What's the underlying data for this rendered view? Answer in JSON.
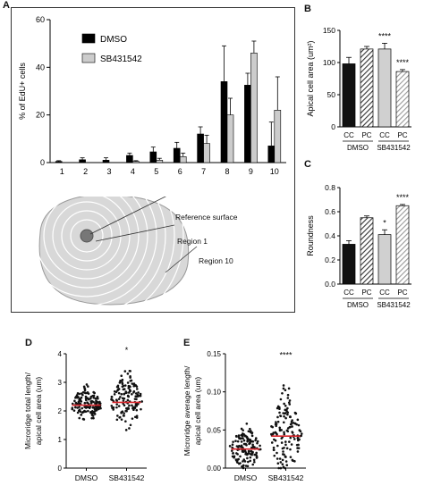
{
  "panels": {
    "A": "A",
    "B": "B",
    "C": "C",
    "D": "D",
    "E": "E"
  },
  "panel_a_annotations": {
    "reference": "Reference surface",
    "region1": "Region 1",
    "region10": "Region 10"
  },
  "chart_data": [
    {
      "id": "A",
      "type": "bar",
      "ylabel": "% of EdU+ cells",
      "xlabel": "",
      "ylim": [
        0,
        60
      ],
      "yticks": [
        0,
        20,
        40,
        60
      ],
      "categories": [
        "1",
        "2",
        "3",
        "4",
        "5",
        "6",
        "7",
        "8",
        "9",
        "10"
      ],
      "legend_position": "top-left",
      "series": [
        {
          "name": "DMSO",
          "color": "#000000",
          "values": [
            0.5,
            1.2,
            1.0,
            3.0,
            4.5,
            6.0,
            12.0,
            34.0,
            32.5,
            7.0
          ],
          "errors": [
            0.3,
            0.8,
            1.0,
            1.0,
            2.0,
            2.5,
            3.0,
            15.0,
            5.0,
            10.0
          ]
        },
        {
          "name": "SB431542",
          "color": "#cccccc",
          "values": [
            0.0,
            0.0,
            0.0,
            0.5,
            1.0,
            2.5,
            8.0,
            20.0,
            46.0,
            22.0
          ],
          "errors": [
            0.0,
            0.0,
            0.0,
            0.3,
            0.8,
            1.5,
            3.5,
            7.0,
            5.0,
            14.0
          ]
        }
      ]
    },
    {
      "id": "B",
      "type": "bar",
      "ylabel": "Apical cell area (um²)",
      "ylim": [
        0,
        150
      ],
      "yticks": [
        0,
        50,
        100,
        150
      ],
      "categories": [
        "CC",
        "PC",
        "CC",
        "PC"
      ],
      "groups": [
        "DMSO",
        "SB431542"
      ],
      "values": [
        98,
        121,
        121,
        86
      ],
      "errors": [
        10,
        4,
        9,
        3
      ],
      "fills": [
        "solid-black",
        "hatch-dark",
        "solid-light",
        "hatch-light"
      ],
      "significance": [
        "",
        "",
        "****",
        "****"
      ]
    },
    {
      "id": "C",
      "type": "bar",
      "ylabel": "Roundness",
      "ylim": [
        0,
        0.8
      ],
      "yticks": [
        0.0,
        0.2,
        0.4,
        0.6,
        0.8
      ],
      "categories": [
        "CC",
        "PC",
        "CC",
        "PC"
      ],
      "groups": [
        "DMSO",
        "SB431542"
      ],
      "values": [
        0.33,
        0.55,
        0.41,
        0.65
      ],
      "errors": [
        0.03,
        0.015,
        0.04,
        0.01
      ],
      "fills": [
        "solid-black",
        "hatch-dark",
        "solid-light",
        "hatch-light"
      ],
      "significance": [
        "",
        "",
        "*",
        "****"
      ]
    },
    {
      "id": "D",
      "type": "scatter",
      "ylabel": "Microridge total length/ apical cell area (um)",
      "ylim": [
        0,
        4
      ],
      "yticks": [
        0,
        1,
        2,
        3,
        4
      ],
      "categories": [
        "DMSO",
        "SB431542"
      ],
      "means": [
        2.2,
        2.3
      ],
      "spread": [
        {
          "min": 1.6,
          "max": 3.2
        },
        {
          "min": 1.3,
          "max": 3.9
        }
      ],
      "significance": [
        "",
        "*"
      ],
      "mean_color": "#d9262c"
    },
    {
      "id": "E",
      "type": "scatter",
      "ylabel": "Microridge average length/ apical cell area (um)",
      "ylim": [
        0,
        0.15
      ],
      "yticks": [
        0.0,
        0.05,
        0.1,
        0.15
      ],
      "categories": [
        "DMSO",
        "SB431542"
      ],
      "means": [
        0.025,
        0.042
      ],
      "spread": [
        {
          "min": 0.0,
          "max": 0.07
        },
        {
          "min": 0.0,
          "max": 0.14
        }
      ],
      "significance": [
        "",
        "****"
      ],
      "mean_color": "#d9262c"
    }
  ]
}
